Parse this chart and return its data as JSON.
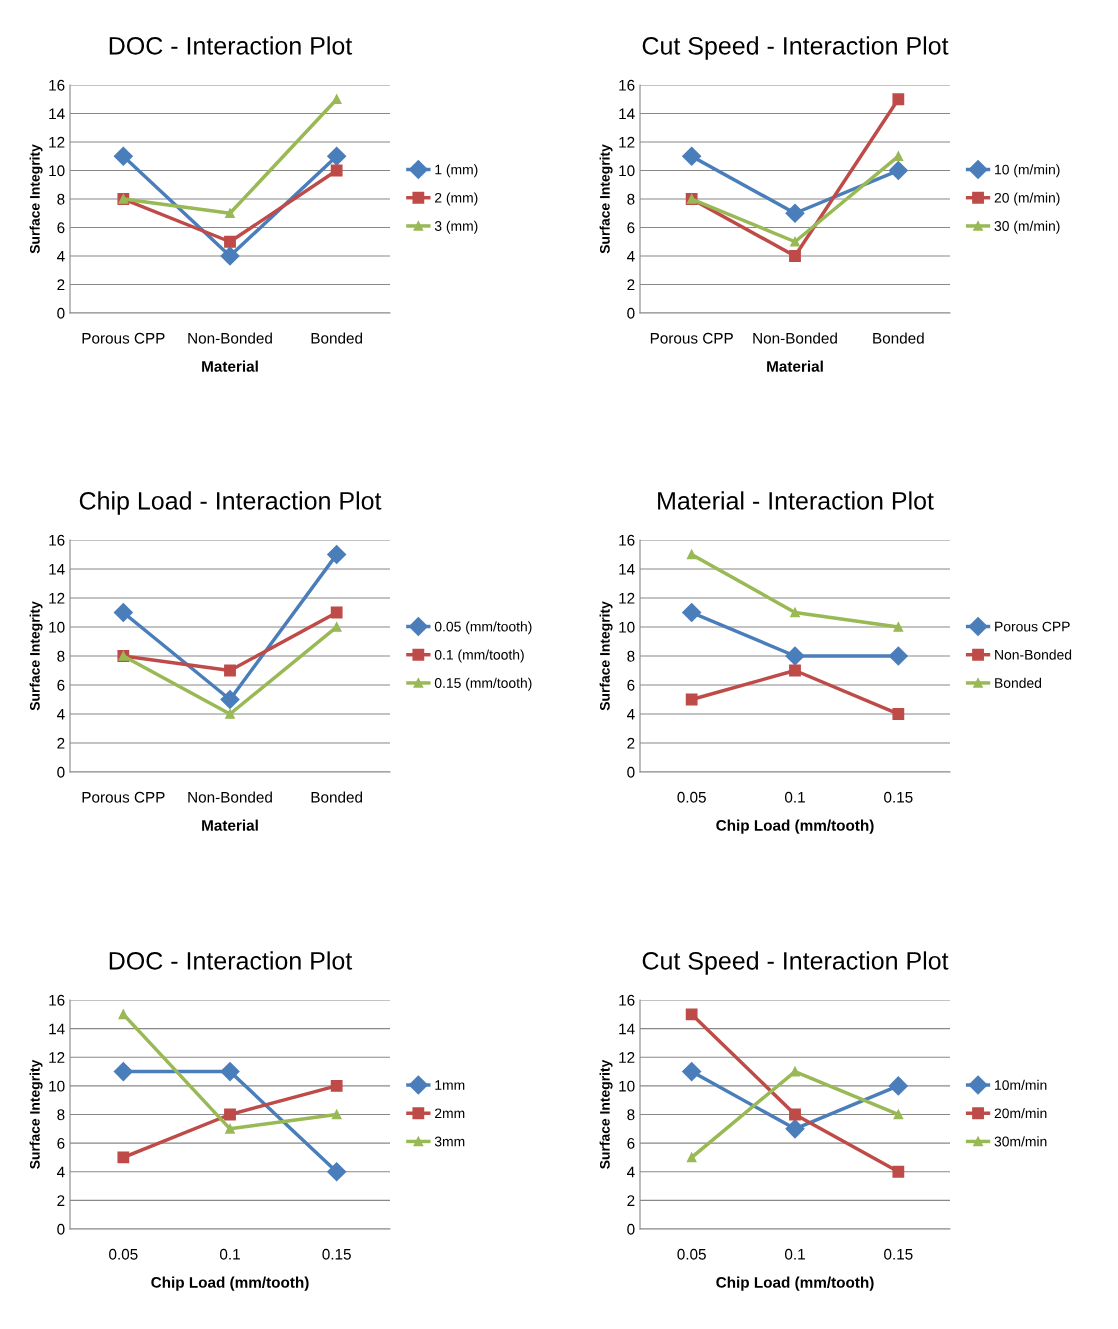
{
  "chart_data": [
    {
      "type": "line",
      "title": "DOC - Interaction Plot",
      "xlabel": "Material",
      "ylabel": "Surface Integrity",
      "categories": [
        "Porous CPP",
        "Non-Bonded",
        "Bonded"
      ],
      "ylim": [
        0,
        16
      ],
      "yticks": [
        0,
        2,
        4,
        6,
        8,
        10,
        12,
        14,
        16
      ],
      "grid": "y",
      "legend": "right",
      "series": [
        {
          "name": "1 (mm)",
          "color": "#4a7ebb",
          "marker": "diamond",
          "values": [
            11,
            4,
            11
          ]
        },
        {
          "name": "2 (mm)",
          "color": "#be4b48",
          "marker": "square",
          "values": [
            8,
            5,
            10
          ]
        },
        {
          "name": "3 (mm)",
          "color": "#98b954",
          "marker": "triangle",
          "values": [
            8,
            7,
            15
          ]
        }
      ]
    },
    {
      "type": "line",
      "title": "Cut Speed - Interaction Plot",
      "xlabel": "Material",
      "ylabel": "Surface Integrity",
      "categories": [
        "Porous CPP",
        "Non-Bonded",
        "Bonded"
      ],
      "ylim": [
        0,
        16
      ],
      "yticks": [
        0,
        2,
        4,
        6,
        8,
        10,
        12,
        14,
        16
      ],
      "grid": "y",
      "legend": "right",
      "series": [
        {
          "name": "10 (m/min)",
          "color": "#4a7ebb",
          "marker": "diamond",
          "values": [
            11,
            7,
            10
          ]
        },
        {
          "name": "20 (m/min)",
          "color": "#be4b48",
          "marker": "square",
          "values": [
            8,
            4,
            15
          ]
        },
        {
          "name": "30 (m/min)",
          "color": "#98b954",
          "marker": "triangle",
          "values": [
            8,
            5,
            11
          ]
        }
      ]
    },
    {
      "type": "line",
      "title": "Chip Load - Interaction Plot",
      "xlabel": "Material",
      "ylabel": "Surface Integrity",
      "categories": [
        "Porous CPP",
        "Non-Bonded",
        "Bonded"
      ],
      "ylim": [
        0,
        16
      ],
      "yticks": [
        0,
        2,
        4,
        6,
        8,
        10,
        12,
        14,
        16
      ],
      "grid": "y",
      "legend": "right",
      "series": [
        {
          "name": "0.05 (mm/tooth)",
          "color": "#4a7ebb",
          "marker": "diamond",
          "values": [
            11,
            5,
            15
          ]
        },
        {
          "name": "0.1 (mm/tooth)",
          "color": "#be4b48",
          "marker": "square",
          "values": [
            8,
            7,
            11
          ]
        },
        {
          "name": "0.15 (mm/tooth)",
          "color": "#98b954",
          "marker": "triangle",
          "values": [
            8,
            4,
            10
          ]
        }
      ]
    },
    {
      "type": "line",
      "title": "Material - Interaction Plot",
      "xlabel": "Chip Load (mm/tooth)",
      "ylabel": "Surface Integrity",
      "categories": [
        "0.05",
        "0.1",
        "0.15"
      ],
      "ylim": [
        0,
        16
      ],
      "yticks": [
        0,
        2,
        4,
        6,
        8,
        10,
        12,
        14,
        16
      ],
      "grid": "y",
      "legend": "right",
      "series": [
        {
          "name": "Porous CPP",
          "color": "#4a7ebb",
          "marker": "diamond",
          "values": [
            11,
            8,
            8
          ]
        },
        {
          "name": "Non-Bonded",
          "color": "#be4b48",
          "marker": "square",
          "values": [
            5,
            7,
            4
          ]
        },
        {
          "name": "Bonded",
          "color": "#98b954",
          "marker": "triangle",
          "values": [
            15,
            11,
            10
          ]
        }
      ]
    },
    {
      "type": "line",
      "title": "DOC - Interaction Plot",
      "xlabel": "Chip Load (mm/tooth)",
      "ylabel": "Surface Integrity",
      "categories": [
        "0.05",
        "0.1",
        "0.15"
      ],
      "ylim": [
        0,
        16
      ],
      "yticks": [
        0,
        2,
        4,
        6,
        8,
        10,
        12,
        14,
        16
      ],
      "grid": "y",
      "legend": "right",
      "series": [
        {
          "name": "1mm",
          "color": "#4a7ebb",
          "marker": "diamond",
          "values": [
            11,
            11,
            4
          ]
        },
        {
          "name": "2mm",
          "color": "#be4b48",
          "marker": "square",
          "values": [
            5,
            8,
            10
          ]
        },
        {
          "name": "3mm",
          "color": "#98b954",
          "marker": "triangle",
          "values": [
            15,
            7,
            8
          ]
        }
      ]
    },
    {
      "type": "line",
      "title": "Cut Speed - Interaction Plot",
      "xlabel": "Chip Load (mm/tooth)",
      "ylabel": "Surface Integrity",
      "categories": [
        "0.05",
        "0.1",
        "0.15"
      ],
      "ylim": [
        0,
        16
      ],
      "yticks": [
        0,
        2,
        4,
        6,
        8,
        10,
        12,
        14,
        16
      ],
      "grid": "y",
      "legend": "right",
      "series": [
        {
          "name": "10m/min",
          "color": "#4a7ebb",
          "marker": "diamond",
          "values": [
            11,
            7,
            10
          ]
        },
        {
          "name": "20m/min",
          "color": "#be4b48",
          "marker": "square",
          "values": [
            15,
            8,
            4
          ]
        },
        {
          "name": "30m/min",
          "color": "#98b954",
          "marker": "triangle",
          "values": [
            5,
            11,
            8
          ]
        }
      ]
    }
  ]
}
